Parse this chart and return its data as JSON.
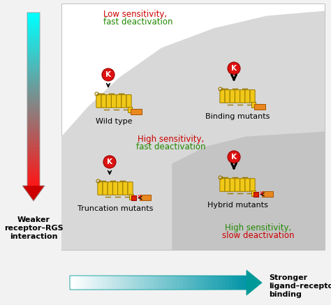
{
  "bg_color": "#f2f2f2",
  "white": "#ffffff",
  "gray_light": "#d8d8d8",
  "gray_dark": "#c4c4c4",
  "label_low_s1": "Low sensitivity,",
  "label_low_s2": "fast deactivation",
  "label_high_fast_s1": "High sensitivity,",
  "label_high_fast_s2": "fast deactivation",
  "label_high_slow_s1": "High sensitivity,",
  "label_high_slow_s2": "slow deactivation",
  "label_wild_type": "Wild type",
  "label_binding": "Binding mutants",
  "label_truncation": "Truncation mutants",
  "label_hybrid": "Hybrid mutants",
  "label_weaker_1": "Weaker",
  "label_weaker_2": "receptor–RGS",
  "label_weaker_3": "interaction",
  "label_stronger_1": "Stronger",
  "label_stronger_2": "ligand–receptor",
  "label_stronger_3": "binding",
  "red": "#cc0000",
  "green": "#228800",
  "orange": "#e88820",
  "orange_dark": "#aa5500",
  "yellow": "#f0c818",
  "yellow_dark": "#9a7800",
  "k_red": "#dd1111",
  "k_border": "#990000",
  "red_block": "#dd2200",
  "red_block_border": "#990000"
}
